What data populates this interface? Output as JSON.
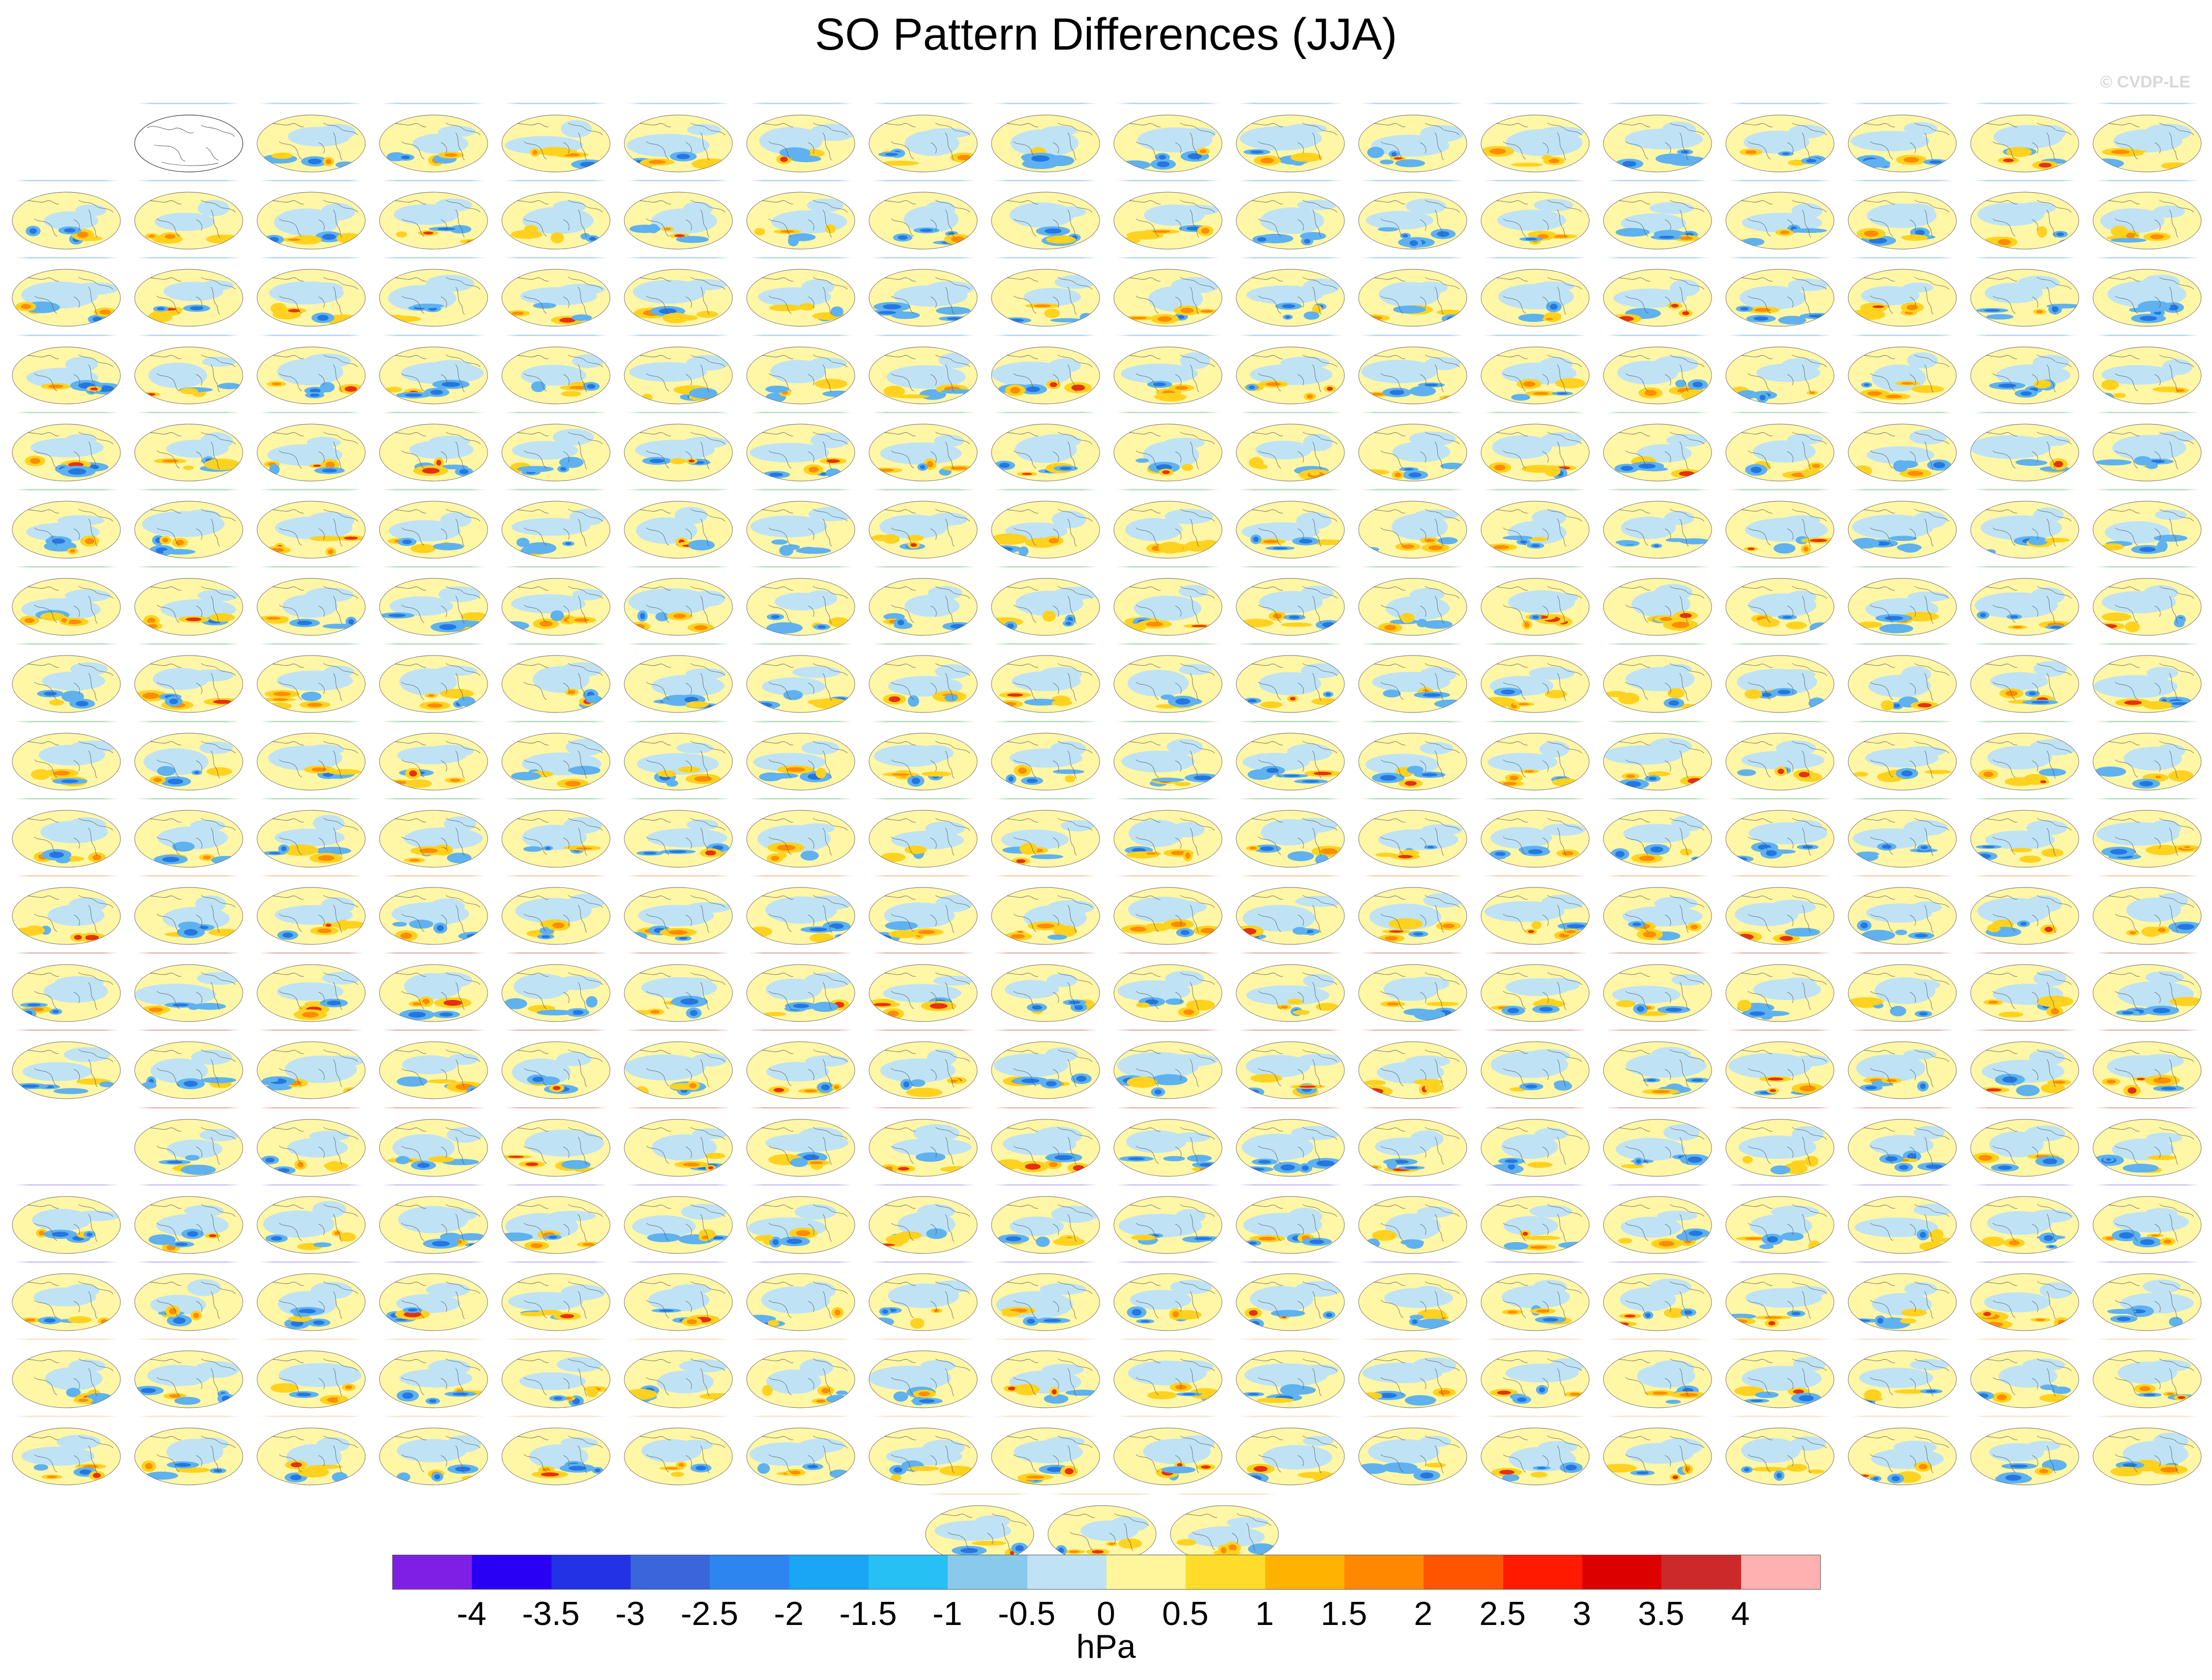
{
  "title": "SO Pattern Differences (JJA)",
  "watermark": "© CVDP-LE",
  "grid": {
    "columns": 18,
    "rows": 18,
    "extra_panels_bottom": 3
  },
  "colorbar": {
    "units": "hPa",
    "ticks": [
      "-4",
      "-3.5",
      "-3",
      "-2.5",
      "-2",
      "-1.5",
      "-1",
      "-0.5",
      "0",
      "0.5",
      "1",
      "1.5",
      "2",
      "2.5",
      "3",
      "3.5",
      "4"
    ],
    "colors": [
      "#7f1fe6",
      "#2a00f5",
      "#2233e6",
      "#3a66dc",
      "#2d86f0",
      "#18a6f5",
      "#27c0f5",
      "#88c9ec",
      "#bfe2f4",
      "#fff59a",
      "#ffdc2a",
      "#ffb300",
      "#ff8800",
      "#ff5500",
      "#ff1a00",
      "#dd0000",
      "#cc2a2a",
      "#ffb0b0"
    ]
  },
  "map_palette": {
    "pos_light": "#fff6a6",
    "pos_mid": "#ffd21f",
    "pos_strong": "#ff8c00",
    "pos_max": "#e83010",
    "neg_light": "#bfe3f5",
    "neg_mid": "#5fb2ef",
    "neg_strong": "#2377e3",
    "coast": "#555555"
  },
  "caption_colors": {
    "header": "#222222",
    "cesm_mpi": "#3a8cbf",
    "cesm_lens": "#3aa04a",
    "cmip5": "#d08020",
    "gfdl": "#b83a2a",
    "ipsl": "#6a5ae0",
    "miroc": "#e0b070"
  }
}
